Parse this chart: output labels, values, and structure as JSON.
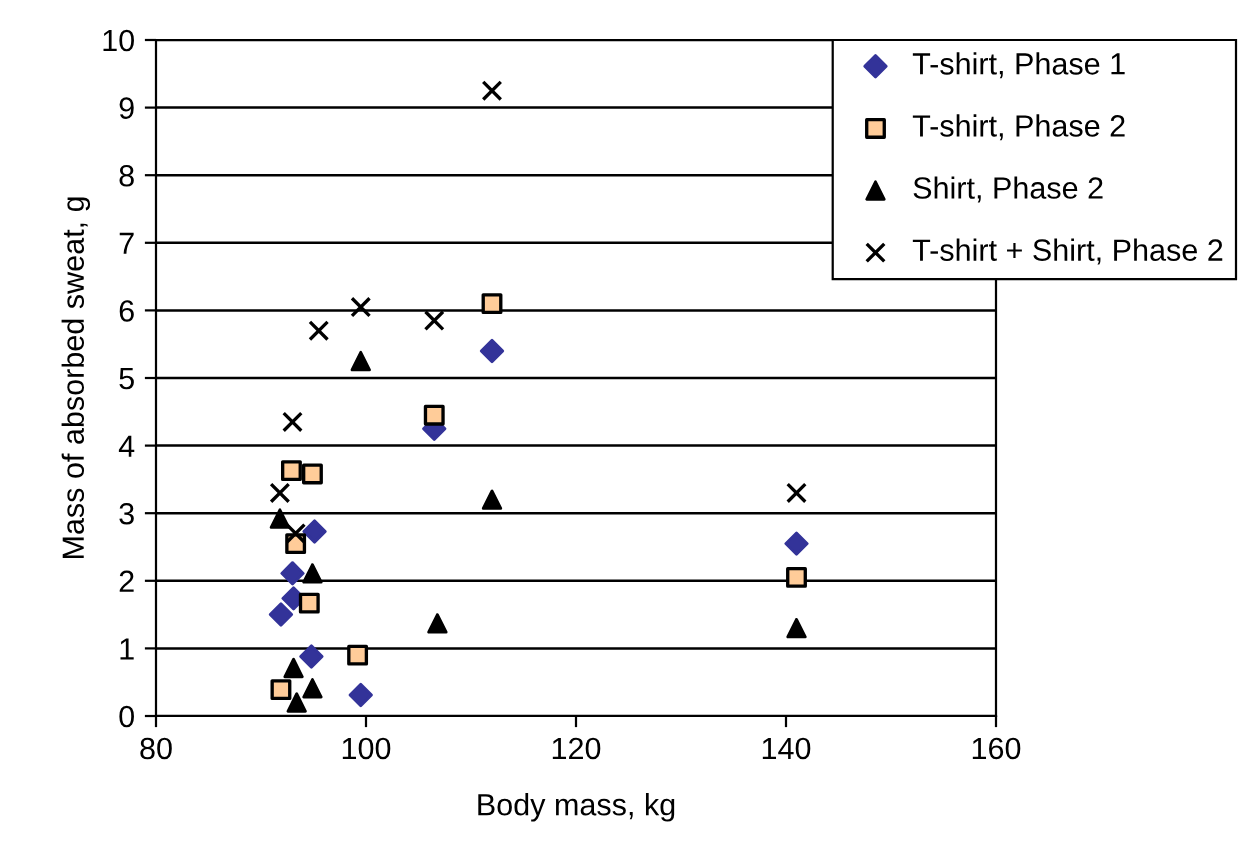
{
  "chart_data": {
    "type": "scatter",
    "xlabel": "Body mass, kg",
    "ylabel": "Mass of absorbed sweat, g",
    "xlim": [
      80,
      160
    ],
    "xticks": [
      80,
      100,
      120,
      140,
      160
    ],
    "ylim": [
      0,
      10
    ],
    "yticks": [
      0,
      1,
      2,
      3,
      4,
      5,
      6,
      7,
      8,
      9,
      10
    ],
    "grid": "y",
    "legend": "top right",
    "series": [
      {
        "name": "T-shirt, Phase 1",
        "color": "#333399",
        "marker": "diamond",
        "x": [
          91.9,
          93.1,
          93.0,
          95.1,
          94.8,
          99.5,
          106.5,
          112,
          141
        ],
        "values": [
          1.5,
          1.74,
          2.11,
          2.73,
          0.88,
          0.31,
          4.25,
          5.4,
          2.55
        ]
      },
      {
        "name": "T-shirt, Phase 2",
        "color": "#ffcc99",
        "marker": "square",
        "x": [
          92.9,
          94.9,
          93.3,
          94.6,
          99.2,
          91.9,
          106.5,
          112,
          141
        ],
        "values": [
          3.63,
          3.58,
          2.55,
          1.67,
          0.9,
          0.39,
          4.45,
          6.1,
          2.05
        ]
      },
      {
        "name": "Shirt, Phase 2",
        "color": "#000000",
        "marker": "triangle",
        "x": [
          91.8,
          94.9,
          93.1,
          93.4,
          94.9,
          106.8,
          99.5,
          112,
          141
        ],
        "values": [
          2.92,
          2.11,
          0.71,
          0.2,
          0.41,
          1.37,
          5.25,
          3.2,
          1.3
        ]
      },
      {
        "name": "T-shirt + Shirt, Phase 2",
        "color": "#000000",
        "marker": "cross",
        "x": [
          91.8,
          93.3,
          93.0,
          95.5,
          99.5,
          106.5,
          112,
          141
        ],
        "values": [
          3.3,
          2.7,
          4.35,
          5.7,
          6.05,
          5.85,
          9.25,
          3.3
        ]
      }
    ]
  }
}
